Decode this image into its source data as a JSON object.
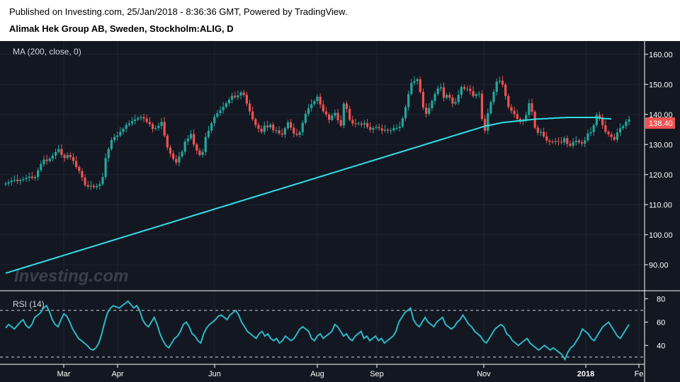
{
  "header": {
    "published": "Published on Investing.com, 25/Jan/2018 - 8:36:36 GMT, Powered by TradingView.",
    "symbol": "Alimak Hek Group AB, Sweden, Stockholm:ALIG, D"
  },
  "watermark": "Investing.com",
  "colors": {
    "background": "#131722",
    "up": "#26a69a",
    "down": "#ef5350",
    "ma": "#2fe0e8",
    "rsi": "#2bb8c6",
    "last_price": "#ef5350"
  },
  "chart_data": [
    {
      "type": "candlestick",
      "indicator_label": "MA (200, close, 0)",
      "ylim": [
        83,
        163
      ],
      "y_ticks": [
        "160.00",
        "150.00",
        "140.00",
        "130.00",
        "120.00",
        "110.00",
        "100.00",
        "90.00"
      ],
      "last_price": "138.40",
      "x_ticks": [
        "Mar",
        "Apr",
        "Jun",
        "Aug",
        "Sep",
        "Nov",
        "2018",
        "Fe"
      ],
      "close": [
        117,
        117.5,
        118,
        118.3,
        117.8,
        118.2,
        118.5,
        118.9,
        119.3,
        118.8,
        119.2,
        121.5,
        123.5,
        125,
        124.5,
        125.3,
        126.3,
        127.5,
        128.5,
        126.5,
        125.5,
        126.5,
        125.8,
        124.5,
        122.5,
        121.2,
        119,
        116.5,
        116,
        116.3,
        115.8,
        116.2,
        116.8,
        119.2,
        125.5,
        128.5,
        131.5,
        132.5,
        133,
        134.2,
        135.2,
        136.5,
        137,
        137.8,
        138.3,
        138.8,
        139.1,
        138.6,
        137.5,
        136.8,
        135.2,
        135.5,
        136.2,
        137.5,
        133,
        129,
        127,
        125.2,
        124,
        126,
        127.6,
        131,
        132,
        133.5,
        130,
        128,
        126.5,
        127.5,
        132.5,
        134.6,
        137.1,
        139.2,
        140.4,
        141.4,
        142.5,
        143.7,
        144.9,
        146.2,
        145.7,
        146.3,
        147.3,
        146.5,
        143.6,
        141,
        138.4,
        136.5,
        135.2,
        134.2,
        136.3,
        135.7,
        136.6,
        134.7,
        134.7,
        133.7,
        133.3,
        135.4,
        137.4,
        135.6,
        133.6,
        133.2,
        134.1,
        137.2,
        140.2,
        142.1,
        143.4,
        144.4,
        145.9,
        143.3,
        141,
        140,
        138.2,
        139.6,
        140.5,
        138.1,
        136.3,
        143.6,
        141.8,
        138.2,
        137,
        136.9,
        137,
        136.6,
        137.1,
        135.8,
        134.9,
        135.5,
        135.8,
        135.4,
        134.6,
        134.9,
        134.6,
        134.7,
        135.5,
        135.5,
        136,
        138.7,
        142.4,
        146.8,
        150.5,
        151.1,
        151.7,
        147.5,
        142.3,
        140.2,
        142.1,
        144.5,
        146.8,
        148.6,
        149,
        145.5,
        146.5,
        145.6,
        143.6,
        144.1,
        146.5,
        149.1,
        148.5,
        148.5,
        147.8,
        146.1,
        146.7,
        146.9,
        138.5,
        134.6,
        140.4,
        144.1,
        147.5,
        150.9,
        151.2,
        149.9,
        146.1,
        142.4,
        141.2,
        140.1,
        138.5,
        137.6,
        137.9,
        139.8,
        143.7,
        140.9,
        135.6,
        133.9,
        134.2,
        132.7,
        131.3,
        130.9,
        130.8,
        131.1,
        130.9,
        130.7,
        132.1,
        130.2,
        129.6,
        130.8,
        131.3,
        130.7,
        130.3,
        131.4,
        133.7,
        134.1,
        136.4,
        139.8,
        138.8,
        136.4,
        134.2,
        133.4,
        132.5,
        131.6,
        134,
        135.4,
        136.1,
        137.6,
        138.4
      ],
      "ma200": [
        87.2,
        87.5,
        87.8,
        88.1,
        88.4,
        88.7,
        89,
        89.3,
        89.6,
        89.9,
        90.2,
        90.5,
        90.8,
        91.1,
        91.4,
        91.7,
        92,
        92.3,
        92.6,
        92.9,
        93.2,
        93.5,
        93.8,
        94.1,
        94.4,
        94.7,
        95,
        95.3,
        95.6,
        95.9,
        96.2,
        96.5,
        96.8,
        97.1,
        97.4,
        97.7,
        98,
        98.3,
        98.6,
        98.9,
        99.2,
        99.5,
        99.8,
        100.1,
        100.4,
        100.7,
        101,
        101.3,
        101.6,
        101.9,
        102.2,
        102.5,
        102.8,
        103.1,
        103.4,
        103.7,
        104,
        104.3,
        104.6,
        104.9,
        105.2,
        105.5,
        105.8,
        106.1,
        106.4,
        106.7,
        107,
        107.3,
        107.6,
        107.9,
        108.2,
        108.5,
        108.8,
        109.1,
        109.4,
        109.7,
        110,
        110.3,
        110.6,
        110.9,
        111.2,
        111.5,
        111.8,
        112.1,
        112.4,
        112.7,
        113,
        113.3,
        113.6,
        113.9,
        114.2,
        114.5,
        114.8,
        115.1,
        115.4,
        115.7,
        116,
        116.3,
        116.6,
        116.9,
        117.2,
        117.5,
        117.8,
        118.1,
        118.4,
        118.7,
        119,
        119.3,
        119.6,
        119.9,
        120.2,
        120.5,
        120.8,
        121.1,
        121.4,
        121.7,
        122,
        122.3,
        122.6,
        122.9,
        123.2,
        123.5,
        123.8,
        124.1,
        124.4,
        124.7,
        125,
        125.3,
        125.6,
        125.9,
        126.2,
        126.5,
        126.8,
        127.1,
        127.4,
        127.7,
        128,
        128.3,
        128.6,
        128.9,
        129.2,
        129.5,
        129.8,
        130.1,
        130.4,
        130.7,
        131,
        131.3,
        131.6,
        131.9,
        132.2,
        132.5,
        132.8,
        133.1,
        133.4,
        133.7,
        134,
        134.3,
        134.6,
        134.9,
        135.2,
        135.5,
        135.8,
        136.1,
        136.3,
        136.5,
        136.7,
        136.9,
        137.1,
        137.3,
        137.4,
        137.5,
        137.6,
        137.7,
        137.8,
        137.9,
        138,
        138.1,
        138.2,
        138.3,
        138.4,
        138.5,
        138.5,
        138.6,
        138.6,
        138.7,
        138.7,
        138.8,
        138.8,
        138.9,
        138.9,
        139,
        139,
        139,
        139,
        139,
        139,
        139,
        139,
        139,
        139,
        139,
        138.8,
        138.7,
        138.6,
        138.6,
        138.5
      ],
      "series": [
        {
          "name": "MA (200, close, 0)"
        }
      ]
    },
    {
      "type": "line",
      "indicator_label": "RSI (14)",
      "ylim": [
        25,
        85
      ],
      "y_ticks": [
        "80",
        "60",
        "40"
      ],
      "levels": [
        70,
        30
      ],
      "values": [
        55,
        58,
        56,
        54,
        57,
        60,
        62,
        57,
        55,
        58,
        64,
        66,
        68,
        72,
        74,
        69,
        62,
        58,
        56,
        62,
        67,
        65,
        60,
        54,
        50,
        46,
        44,
        42,
        40,
        37,
        36,
        38,
        42,
        50,
        60,
        68,
        72,
        74,
        73,
        72,
        74,
        76,
        78,
        75,
        72,
        74,
        70,
        62,
        58,
        56,
        60,
        64,
        58,
        50,
        44,
        40,
        38,
        42,
        46,
        48,
        52,
        58,
        60,
        56,
        50,
        48,
        44,
        42,
        50,
        55,
        58,
        60,
        62,
        65,
        66,
        64,
        62,
        66,
        68,
        70,
        66,
        60,
        56,
        52,
        50,
        48,
        46,
        50,
        52,
        48,
        50,
        46,
        44,
        46,
        42,
        44,
        48,
        46,
        44,
        46,
        50,
        54,
        56,
        54,
        52,
        46,
        44,
        48,
        50,
        46,
        48,
        50,
        52,
        58,
        56,
        52,
        48,
        50,
        46,
        44,
        48,
        50,
        52,
        46,
        48,
        44,
        46,
        48,
        44,
        46,
        42,
        44,
        46,
        48,
        52,
        60,
        64,
        68,
        70,
        72,
        62,
        58,
        56,
        60,
        64,
        60,
        58,
        56,
        60,
        62,
        64,
        58,
        56,
        54,
        56,
        60,
        62,
        66,
        62,
        58,
        56,
        52,
        50,
        48,
        44,
        42,
        46,
        50,
        54,
        56,
        58,
        56,
        50,
        48,
        44,
        42,
        40,
        42,
        44,
        46,
        42,
        40,
        38,
        36,
        38,
        40,
        38,
        36,
        38,
        36,
        34,
        32,
        28,
        34,
        38,
        40,
        44,
        48,
        54,
        52,
        50,
        46,
        44,
        48,
        52,
        56,
        58,
        60,
        56,
        52,
        48,
        46,
        50,
        54,
        58
      ]
    }
  ]
}
